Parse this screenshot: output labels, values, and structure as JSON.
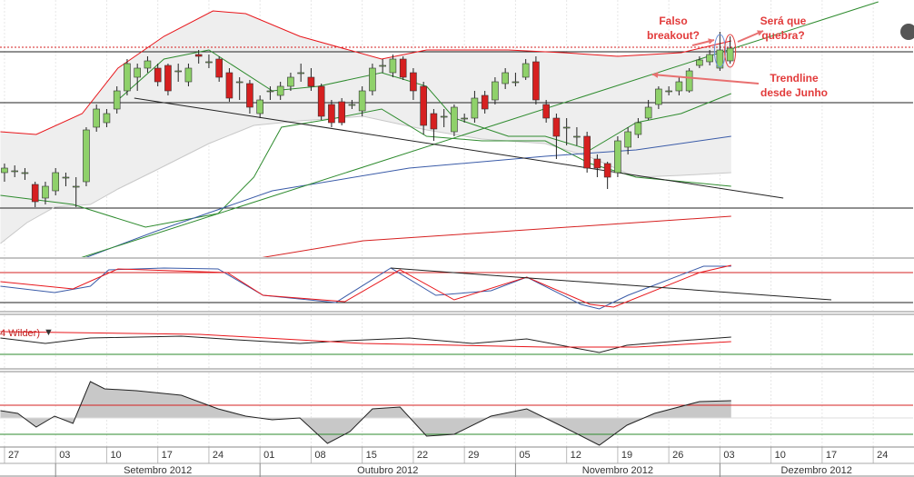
{
  "chart_data": {
    "type": "candlestick",
    "xlim": [
      -0.44,
      88.9
    ],
    "xticks": [
      {
        "value": 0,
        "label": "27"
      },
      {
        "value": 5,
        "label": "03"
      },
      {
        "value": 10,
        "label": "10"
      },
      {
        "value": 15,
        "label": "17"
      },
      {
        "value": 20,
        "label": "24"
      },
      {
        "value": 25,
        "label": "01"
      },
      {
        "value": 30,
        "label": "08"
      },
      {
        "value": 35,
        "label": "15"
      },
      {
        "value": 40,
        "label": "22"
      },
      {
        "value": 45,
        "label": "29"
      },
      {
        "value": 50,
        "label": "05"
      },
      {
        "value": 55,
        "label": "12"
      },
      {
        "value": 60,
        "label": "19"
      },
      {
        "value": 65,
        "label": "26"
      },
      {
        "value": 70,
        "label": "03"
      },
      {
        "value": 75,
        "label": "10"
      },
      {
        "value": 80,
        "label": "17"
      },
      {
        "value": 85,
        "label": "24"
      }
    ],
    "months": [
      "Setembro 2012",
      "Outubro 2012",
      "Novembro 2012",
      "Dezembro 2012"
    ],
    "grid": true,
    "ylim": [
      0,
      283
    ],
    "up_color": "#8fd16a",
    "down_color": "#d62020",
    "open": [
      93,
      95,
      93,
      80,
      65,
      73,
      88,
      78,
      83,
      143,
      148,
      163,
      183,
      198,
      208,
      208,
      211,
      205,
      193,
      223,
      215,
      218,
      203,
      193,
      191,
      158,
      183,
      178,
      188,
      203,
      198,
      188,
      168,
      171,
      168,
      161,
      183,
      211,
      203,
      218,
      203,
      188,
      158,
      155,
      138,
      153,
      153,
      178,
      173,
      191,
      193,
      198,
      215,
      168,
      153,
      143,
      133,
      133,
      108,
      103,
      93,
      121,
      135,
      153,
      168,
      183,
      183,
      183,
      211,
      215,
      208,
      216
    ],
    "high": [
      103,
      101,
      98,
      83,
      83,
      98,
      93,
      88,
      143,
      168,
      163,
      188,
      218,
      213,
      221,
      213,
      213,
      213,
      213,
      228,
      223,
      221,
      208,
      198,
      195,
      178,
      188,
      193,
      203,
      213,
      208,
      191,
      173,
      175,
      173,
      188,
      213,
      218,
      223,
      221,
      208,
      193,
      163,
      163,
      168,
      158,
      183,
      183,
      198,
      208,
      203,
      218,
      221,
      173,
      158,
      153,
      143,
      138,
      113,
      105,
      133,
      143,
      153,
      173,
      188,
      188,
      198,
      208,
      221,
      228,
      248,
      243
    ],
    "low": [
      83,
      88,
      85,
      55,
      58,
      68,
      78,
      55,
      78,
      138,
      143,
      158,
      178,
      183,
      203,
      188,
      178,
      193,
      188,
      213,
      208,
      193,
      171,
      173,
      158,
      153,
      173,
      173,
      183,
      193,
      183,
      151,
      143,
      145,
      163,
      155,
      178,
      203,
      198,
      195,
      173,
      135,
      128,
      143,
      133,
      148,
      148,
      158,
      168,
      185,
      188,
      195,
      168,
      148,
      108,
      123,
      123,
      93,
      88,
      75,
      88,
      113,
      131,
      151,
      163,
      178,
      178,
      181,
      208,
      211,
      205,
      213
    ],
    "close": [
      98,
      95,
      93,
      61,
      78,
      93,
      88,
      78,
      140,
      163,
      158,
      183,
      213,
      208,
      216,
      193,
      183,
      205,
      208,
      221,
      215,
      198,
      175,
      193,
      165,
      173,
      183,
      188,
      198,
      203,
      188,
      155,
      148,
      148,
      168,
      183,
      208,
      211,
      218,
      198,
      183,
      145,
      141,
      155,
      165,
      153,
      175,
      163,
      193,
      203,
      193,
      213,
      173,
      153,
      133,
      143,
      133,
      98,
      98,
      88,
      128,
      138,
      148,
      165,
      185,
      183,
      193,
      205,
      217,
      223,
      228,
      230
    ],
    "overlays": [
      {
        "color": "#e8161b",
        "x": [
          -0.4,
          3.1,
          7.6,
          11.1,
          15.6,
          20.4,
          23.6,
          28.9,
          36.9,
          41.3,
          49.3,
          54.7,
          60,
          66.2,
          71.1
        ],
        "values": [
          138,
          135,
          158,
          208,
          243,
          271,
          268,
          243,
          218,
          228,
          228,
          225,
          221,
          225,
          238
        ]
      },
      {
        "color": "#c8c8c8",
        "x": [
          -0.4,
          2.2,
          4.9,
          8.4,
          11.1,
          14.7,
          20,
          24.4,
          28.9,
          35.1,
          41.3,
          46.7,
          52.9,
          57.3,
          61.8,
          66.2,
          71.1
        ],
        "values": [
          15,
          38,
          55,
          58,
          75,
          95,
          125,
          145,
          150,
          155,
          140,
          130,
          125,
          110,
          88,
          90,
          93
        ]
      },
      {
        "color": "#2e8b2e",
        "x": [
          11.1,
          15.6,
          20,
          26.2,
          30.7,
          36.9,
          41.3,
          44,
          49.3,
          52.9,
          57.3,
          61.8,
          66.2,
          71.1
        ],
        "values": [
          173,
          218,
          228,
          183,
          188,
          203,
          188,
          153,
          133,
          133,
          118,
          148,
          158,
          180
        ]
      },
      {
        "color": "#2e8b2e",
        "x": [
          -0.4,
          6.7,
          13.8,
          20.9,
          24.4,
          27.1,
          32.4,
          36.9,
          41.3,
          46.7,
          52.9,
          57.3,
          61.8,
          71.1
        ],
        "values": [
          68,
          58,
          33,
          48,
          88,
          143,
          153,
          163,
          133,
          128,
          128,
          103,
          88,
          78
        ]
      },
      {
        "color": "#3a5ba8",
        "x": [
          7.6,
          14.7,
          26.2,
          39.6,
          52.9,
          61.8,
          71.1
        ],
        "values": [
          -2,
          28,
          73,
          98,
          111,
          118,
          133
        ]
      },
      {
        "color": "#d62020",
        "x": [
          24.4,
          35.1,
          48.4,
          61.8,
          71.1
        ],
        "values": [
          -2,
          18,
          28,
          38,
          45
        ]
      },
      {
        "color": "#2e8b2e",
        "x": [
          7.1,
          85.5
        ],
        "values": [
          -2,
          281
        ]
      },
      {
        "color": "#222222",
        "x": [
          12.7,
          76.2
        ],
        "values": [
          175,
          65
        ]
      }
    ],
    "hlines": [
      {
        "value": 226,
        "color": "#222222"
      },
      {
        "value": 231,
        "color": "#d62020"
      },
      {
        "value": 170,
        "color": "#222222"
      },
      {
        "value": 54,
        "color": "#222222"
      }
    ],
    "annotations": [
      [
        "Falso",
        "breakout?"
      ],
      [
        "Será que",
        "quebra?"
      ],
      [
        "Trendline",
        "desde Junho"
      ]
    ],
    "panels": [
      {
        "ylim": [
          0,
          57
        ],
        "series": [
          {
            "color": "#3a5ba8",
            "x": [
              -0.4,
              4.9,
              8.4,
              10.2,
              15.6,
              20.9,
              25.3,
              32.4,
              37.8,
              42.2,
              47.6,
              51.1,
              56.4,
              58.2,
              61,
              68.4,
              71.1
            ],
            "values": [
              27,
              20,
              27,
              45,
              47,
              46,
              17,
              9,
              47,
              17,
              22,
              37,
              7,
              2,
              17,
              49,
              49
            ]
          },
          {
            "color": "#e8161b",
            "x": [
              -0.4,
              6.7,
              11.1,
              21.8,
              25.3,
              33.3,
              38.7,
              44,
              51.1,
              57.3,
              59.6,
              68,
              71.1
            ],
            "values": [
              32,
              24,
              46,
              42,
              17,
              10,
              45,
              12,
              37,
              7,
              4,
              42,
              50
            ]
          },
          {
            "color": "#222222",
            "x": [
              37.8,
              80.9
            ],
            "values": [
              47,
              12
            ]
          }
        ],
        "hlines": [
          {
            "value": 42,
            "color": "#d62020"
          },
          {
            "value": 9,
            "color": "#222222"
          }
        ]
      },
      {
        "ylim": [
          0,
          58
        ],
        "label": "4 Wilder)",
        "series": [
          {
            "color": "#222222",
            "x": [
              -0.4,
              4,
              8.4,
              17.3,
              22.7,
              28.9,
              33.3,
              39.6,
              45.8,
              51.1,
              58.2,
              60.9,
              66.2,
              71.1
            ],
            "values": [
              33,
              27,
              33,
              35,
              31,
              27,
              30,
              33,
              27,
              32,
              17,
              25,
              30,
              34
            ]
          },
          {
            "color": "#e8161b",
            "x": [
              -0.4,
              19.1,
              35.1,
              52.9,
              61.8,
              71.1
            ],
            "values": [
              40,
              37,
              27,
              23,
              23,
              29
            ]
          }
        ],
        "hlines": [
          {
            "value": 15,
            "color": "#2e8b2e"
          }
        ]
      },
      {
        "ylim": [
          0,
          82
        ],
        "baseline": 32,
        "series": [
          {
            "color": "#222222",
            "fill": "#c8c8c8",
            "x": [
              -0.4,
              1.3,
              3.1,
              4.9,
              6.7,
              8.4,
              9.8,
              12.9,
              17.3,
              20.9,
              23.6,
              26.2,
              28.9,
              31.6,
              33.8,
              36,
              38.7,
              41.3,
              44,
              47.6,
              51.1,
              54.7,
              58.2,
              60.9,
              63.6,
              68,
              71.1
            ],
            "values": [
              40,
              37,
              22,
              34,
              26,
              72,
              64,
              62,
              57,
              42,
              34,
              30,
              32,
              4,
              17,
              42,
              44,
              12,
              14,
              34,
              42,
              22,
              2,
              24,
              37,
              50,
              51
            ]
          }
        ],
        "hlines": [
          {
            "value": 46,
            "color": "#d62020"
          },
          {
            "value": 14,
            "color": "#2e8b2e"
          }
        ]
      }
    ]
  }
}
